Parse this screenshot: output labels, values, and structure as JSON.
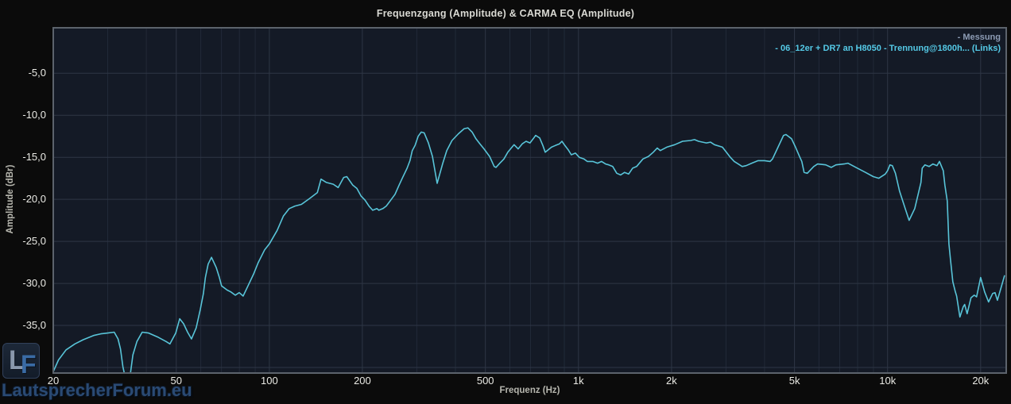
{
  "colors": {
    "page_bg": "#0b0b0b",
    "plot_bg": "#141a26",
    "grid_minor": "#212938",
    "grid_major": "#2e3645",
    "plot_border": "#5c636c",
    "curve": "#58c4d8",
    "tick_label": "#e9e9e4",
    "legend_measure": "#8d9cb5",
    "legend_series": "#54c9e6"
  },
  "watermark": {
    "logo_l": "L",
    "logo_f": "F",
    "site": "LautsprecherForum.eu"
  },
  "chart_data": {
    "type": "line",
    "title": "Frequenzgang (Amplitude) & CARMA EQ (Amplitude)",
    "xlabel": "Frequenz (Hz)",
    "ylabel": "Amplitude (dBr)",
    "x_scale": "log",
    "x_range": [
      20,
      24200
    ],
    "y_top": 0.4,
    "y_bottom": -40.66,
    "legend_position": "top-right",
    "legend_labels": [
      "- Messung",
      "- 06_12er + DR7 an H8050 - Trennung@1800h... (Links)"
    ],
    "x_ticks": [
      {
        "f": 20,
        "label": "20"
      },
      {
        "f": 50,
        "label": "50"
      },
      {
        "f": 100,
        "label": "100"
      },
      {
        "f": 200,
        "label": "200"
      },
      {
        "f": 500,
        "label": "500"
      },
      {
        "f": 1000,
        "label": "1k"
      },
      {
        "f": 2000,
        "label": "2k"
      },
      {
        "f": 5000,
        "label": "5k"
      },
      {
        "f": 10000,
        "label": "10k"
      },
      {
        "f": 20000,
        "label": "20k"
      }
    ],
    "x_minor": [
      30,
      40,
      60,
      70,
      80,
      90,
      300,
      400,
      600,
      700,
      800,
      900,
      3000,
      4000,
      6000,
      7000,
      8000,
      9000
    ],
    "y_ticks": [
      {
        "v": -5,
        "label": "-5,0"
      },
      {
        "v": -10,
        "label": "-10,0"
      },
      {
        "v": -15,
        "label": "-15,0"
      },
      {
        "v": -20,
        "label": "-20,0"
      },
      {
        "v": -25,
        "label": "-25,0"
      },
      {
        "v": -30,
        "label": "-30,0"
      },
      {
        "v": -35,
        "label": "-35,0"
      }
    ],
    "y_grid": [
      -5,
      -10,
      -15,
      -20,
      -25,
      -30,
      -35,
      -40
    ],
    "series": [
      {
        "name": "06_12er + DR7 an H8050 - Trennung@1800h... (Links)",
        "color": "#58c4d8",
        "points": [
          [
            20,
            -40.5
          ],
          [
            20.8,
            -39.1
          ],
          [
            22,
            -37.9
          ],
          [
            23.5,
            -37.2
          ],
          [
            25,
            -36.7
          ],
          [
            27,
            -36.2
          ],
          [
            28.5,
            -36.0
          ],
          [
            30,
            -35.9
          ],
          [
            31.5,
            -35.8
          ],
          [
            32.4,
            -36.6
          ],
          [
            33,
            -37.8
          ],
          [
            33.6,
            -39.9
          ],
          [
            34.2,
            -41.2
          ],
          [
            35.4,
            -41.2
          ],
          [
            36.2,
            -38.5
          ],
          [
            37.3,
            -36.9
          ],
          [
            38.8,
            -35.8
          ],
          [
            40.7,
            -35.9
          ],
          [
            43.7,
            -36.4
          ],
          [
            46.3,
            -36.9
          ],
          [
            47.7,
            -37.2
          ],
          [
            49.8,
            -35.9
          ],
          [
            51.3,
            -34.2
          ],
          [
            52.8,
            -34.8
          ],
          [
            54.4,
            -35.8
          ],
          [
            56,
            -36.6
          ],
          [
            58,
            -35.3
          ],
          [
            59.8,
            -33.1
          ],
          [
            61.2,
            -31.2
          ],
          [
            62.1,
            -29.3
          ],
          [
            63.4,
            -27.7
          ],
          [
            65,
            -26.9
          ],
          [
            67.3,
            -28.1
          ],
          [
            68.8,
            -29.2
          ],
          [
            70.1,
            -30.3
          ],
          [
            73.1,
            -30.8
          ],
          [
            75,
            -31.0
          ],
          [
            77.6,
            -31.4
          ],
          [
            79.9,
            -31.1
          ],
          [
            82.3,
            -31.5
          ],
          [
            85.3,
            -30.3
          ],
          [
            88.9,
            -28.9
          ],
          [
            92.1,
            -27.5
          ],
          [
            96.6,
            -26.0
          ],
          [
            100,
            -25.3
          ],
          [
            106,
            -23.7
          ],
          [
            111,
            -22.0
          ],
          [
            116,
            -21.1
          ],
          [
            121,
            -20.8
          ],
          [
            127,
            -20.6
          ],
          [
            135,
            -19.9
          ],
          [
            143,
            -19.2
          ],
          [
            147,
            -17.6
          ],
          [
            153,
            -18.0
          ],
          [
            161,
            -18.2
          ],
          [
            167,
            -18.6
          ],
          [
            174,
            -17.4
          ],
          [
            178,
            -17.3
          ],
          [
            186,
            -18.3
          ],
          [
            192,
            -18.7
          ],
          [
            198,
            -19.6
          ],
          [
            204,
            -20.1
          ],
          [
            210,
            -20.8
          ],
          [
            216,
            -21.3
          ],
          [
            223,
            -21.1
          ],
          [
            226,
            -21.3
          ],
          [
            233,
            -21.1
          ],
          [
            239,
            -20.8
          ],
          [
            247,
            -20.1
          ],
          [
            255,
            -19.4
          ],
          [
            263,
            -18.3
          ],
          [
            270,
            -17.4
          ],
          [
            279,
            -16.3
          ],
          [
            285,
            -15.4
          ],
          [
            290,
            -14.2
          ],
          [
            296,
            -13.6
          ],
          [
            303,
            -12.5
          ],
          [
            310,
            -12.0
          ],
          [
            317,
            -12.1
          ],
          [
            327,
            -13.3
          ],
          [
            337,
            -14.9
          ],
          [
            349,
            -18.1
          ],
          [
            364,
            -15.7
          ],
          [
            375,
            -14.2
          ],
          [
            390,
            -13.0
          ],
          [
            409,
            -12.2
          ],
          [
            427,
            -11.6
          ],
          [
            439,
            -11.5
          ],
          [
            453,
            -12.0
          ],
          [
            466,
            -12.8
          ],
          [
            480,
            -13.4
          ],
          [
            495,
            -14.0
          ],
          [
            516,
            -14.9
          ],
          [
            534,
            -16.1
          ],
          [
            541,
            -16.2
          ],
          [
            557,
            -15.7
          ],
          [
            574,
            -15.2
          ],
          [
            591,
            -14.4
          ],
          [
            619,
            -13.5
          ],
          [
            638,
            -14.0
          ],
          [
            658,
            -13.4
          ],
          [
            677,
            -13.1
          ],
          [
            697,
            -13.3
          ],
          [
            714,
            -12.8
          ],
          [
            727,
            -12.4
          ],
          [
            749,
            -12.7
          ],
          [
            767,
            -13.6
          ],
          [
            781,
            -14.4
          ],
          [
            799,
            -14.1
          ],
          [
            818,
            -13.8
          ],
          [
            842,
            -13.6
          ],
          [
            868,
            -13.4
          ],
          [
            884,
            -13.1
          ],
          [
            904,
            -13.6
          ],
          [
            926,
            -14.1
          ],
          [
            948,
            -14.7
          ],
          [
            978,
            -14.5
          ],
          [
            1006,
            -15.0
          ],
          [
            1042,
            -15.2
          ],
          [
            1068,
            -15.5
          ],
          [
            1113,
            -15.5
          ],
          [
            1153,
            -15.7
          ],
          [
            1188,
            -15.5
          ],
          [
            1224,
            -15.8
          ],
          [
            1253,
            -15.9
          ],
          [
            1291,
            -16.1
          ],
          [
            1330,
            -16.9
          ],
          [
            1369,
            -17.1
          ],
          [
            1410,
            -16.8
          ],
          [
            1453,
            -17.0
          ],
          [
            1497,
            -16.3
          ],
          [
            1542,
            -16.1
          ],
          [
            1616,
            -15.2
          ],
          [
            1684,
            -14.9
          ],
          [
            1746,
            -14.4
          ],
          [
            1798,
            -13.9
          ],
          [
            1840,
            -14.2
          ],
          [
            1930,
            -13.8
          ],
          [
            2048,
            -13.5
          ],
          [
            2172,
            -13.1
          ],
          [
            2306,
            -13.0
          ],
          [
            2374,
            -12.9
          ],
          [
            2446,
            -13.1
          ],
          [
            2594,
            -13.3
          ],
          [
            2674,
            -13.2
          ],
          [
            2754,
            -13.5
          ],
          [
            2922,
            -13.8
          ],
          [
            3010,
            -14.4
          ],
          [
            3100,
            -15.0
          ],
          [
            3192,
            -15.5
          ],
          [
            3288,
            -15.8
          ],
          [
            3386,
            -16.1
          ],
          [
            3488,
            -16.0
          ],
          [
            3636,
            -15.7
          ],
          [
            3812,
            -15.4
          ],
          [
            3998,
            -15.4
          ],
          [
            4168,
            -15.5
          ],
          [
            4242,
            -15.2
          ],
          [
            4422,
            -13.8
          ],
          [
            4608,
            -12.4
          ],
          [
            4692,
            -12.3
          ],
          [
            4890,
            -12.8
          ],
          [
            5036,
            -13.8
          ],
          [
            5188,
            -14.9
          ],
          [
            5280,
            -15.5
          ],
          [
            5370,
            -16.8
          ],
          [
            5500,
            -16.9
          ],
          [
            5770,
            -16.1
          ],
          [
            5940,
            -15.8
          ],
          [
            6310,
            -15.9
          ],
          [
            6570,
            -16.2
          ],
          [
            6810,
            -15.9
          ],
          [
            7230,
            -15.8
          ],
          [
            7440,
            -15.7
          ],
          [
            7990,
            -16.3
          ],
          [
            8480,
            -16.8
          ],
          [
            8990,
            -17.3
          ],
          [
            9370,
            -17.5
          ],
          [
            9830,
            -17.0
          ],
          [
            10000,
            -16.6
          ],
          [
            10180,
            -15.9
          ],
          [
            10360,
            -16.0
          ],
          [
            10600,
            -16.9
          ],
          [
            10930,
            -19.0
          ],
          [
            11400,
            -21.1
          ],
          [
            11740,
            -22.5
          ],
          [
            12240,
            -21.1
          ],
          [
            12820,
            -18.0
          ],
          [
            12940,
            -16.3
          ],
          [
            13210,
            -15.9
          ],
          [
            13620,
            -16.1
          ],
          [
            14020,
            -15.8
          ],
          [
            14450,
            -16.0
          ],
          [
            14720,
            -15.5
          ],
          [
            15140,
            -16.6
          ],
          [
            15320,
            -18.3
          ],
          [
            15600,
            -20.2
          ],
          [
            15790,
            -25.3
          ],
          [
            15980,
            -27.2
          ],
          [
            16260,
            -29.8
          ],
          [
            16540,
            -30.9
          ],
          [
            16730,
            -31.5
          ],
          [
            17140,
            -34.0
          ],
          [
            17560,
            -32.8
          ],
          [
            17760,
            -32.5
          ],
          [
            18080,
            -33.6
          ],
          [
            18620,
            -31.7
          ],
          [
            19060,
            -31.4
          ],
          [
            19400,
            -31.6
          ],
          [
            20000,
            -29.3
          ],
          [
            20600,
            -31.0
          ],
          [
            21220,
            -32.2
          ],
          [
            21870,
            -31.2
          ],
          [
            22260,
            -31.1
          ],
          [
            22660,
            -32.0
          ],
          [
            23200,
            -30.7
          ],
          [
            23880,
            -29.1
          ]
        ]
      }
    ]
  }
}
